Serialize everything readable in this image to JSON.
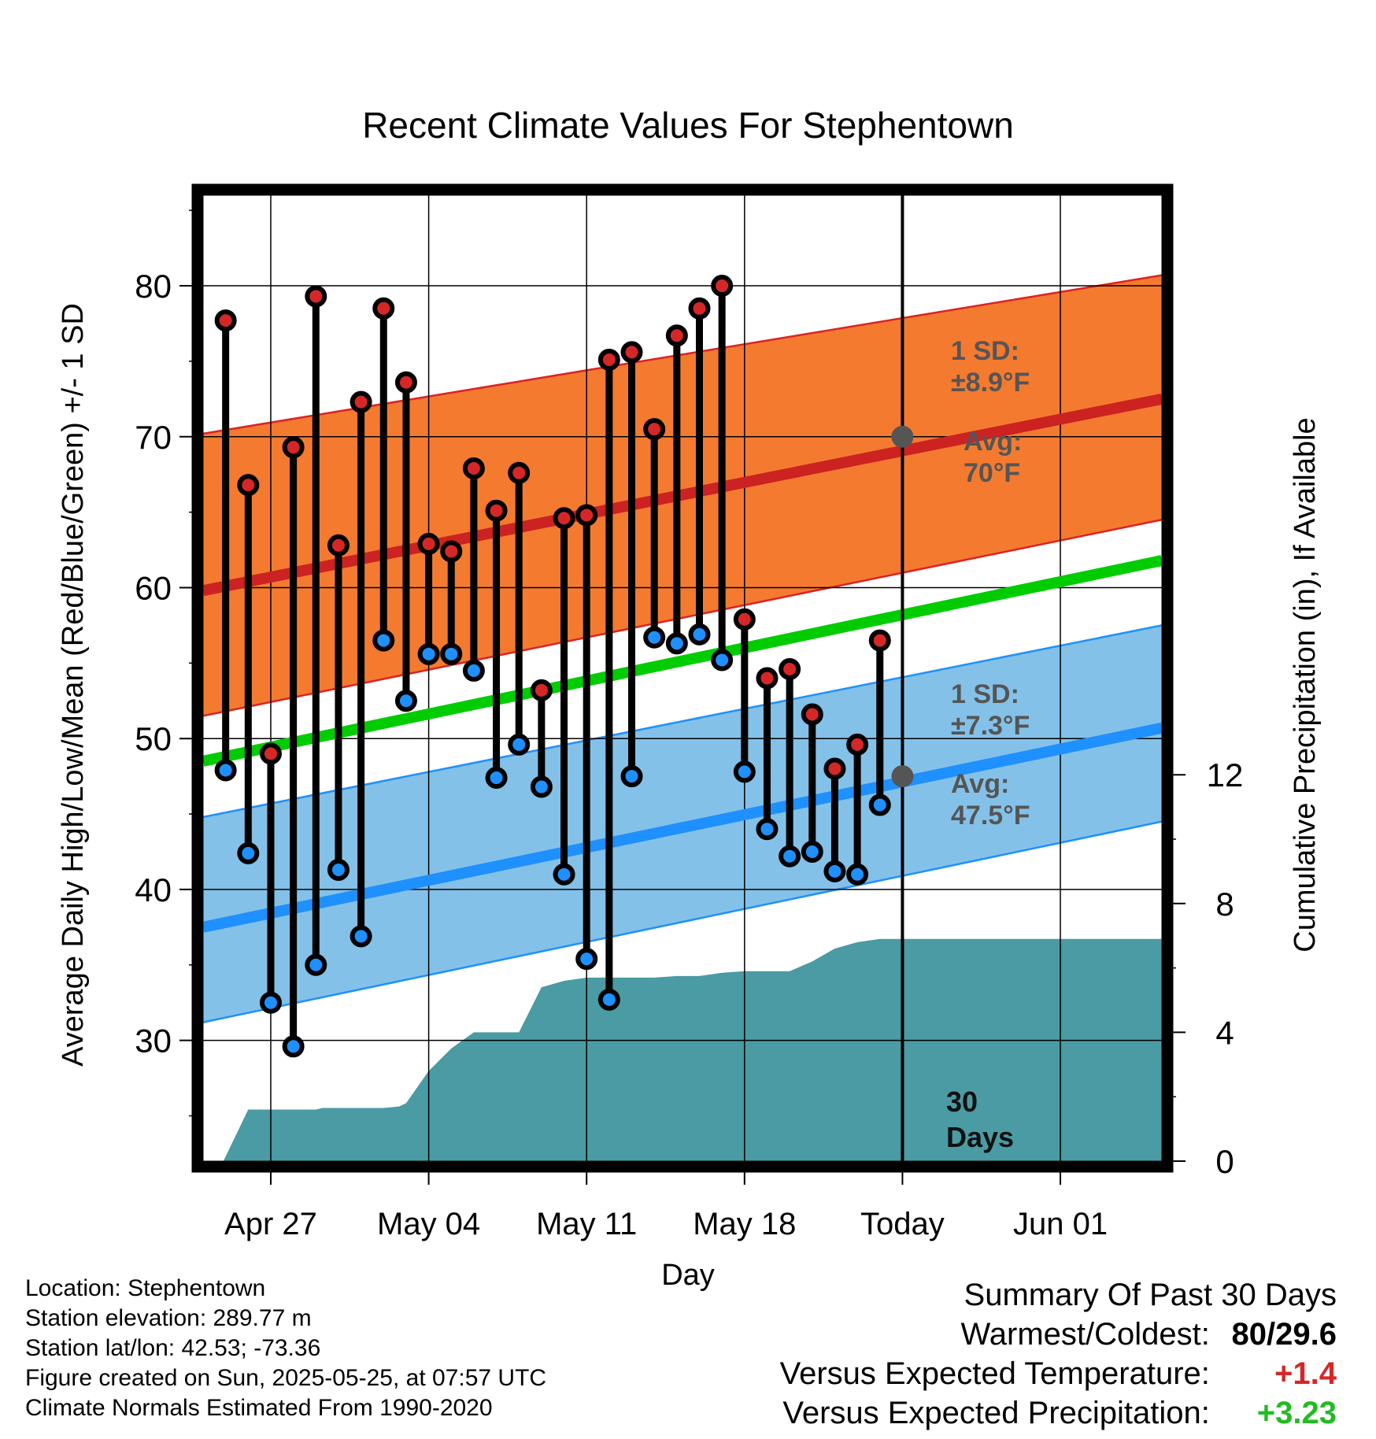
{
  "chart_data": {
    "type": "line",
    "title": "Recent Climate Values For Stephentown",
    "xlabel": "Day",
    "ylabel_left": "Average Daily High/Low/Mean (Red/Blue/Green) +/- 1 SD",
    "ylabel_right": "Cumulative Precipitation (in), If Available",
    "x_range_days_from_apr27": [
      -3,
      39.5
    ],
    "y_left_range": [
      22,
      86
    ],
    "y_right_range": [
      0,
      30
    ],
    "x_ticks": [
      {
        "day": 0,
        "label": "Apr 27"
      },
      {
        "day": 7,
        "label": "May 04"
      },
      {
        "day": 14,
        "label": "May 11"
      },
      {
        "day": 21,
        "label": "May 18"
      },
      {
        "day": 28,
        "label": "Today"
      },
      {
        "day": 35,
        "label": "Jun 01"
      }
    ],
    "y_left_ticks": [
      30,
      40,
      50,
      60,
      70,
      80
    ],
    "y_right_ticks": [
      0,
      4,
      8,
      12
    ],
    "grid": true,
    "days": [
      -2,
      -1,
      0,
      1,
      2,
      3,
      4,
      5,
      6,
      7,
      8,
      9,
      10,
      11,
      12,
      13,
      14,
      15,
      16,
      17,
      18,
      19,
      20,
      21,
      22,
      23,
      24,
      25,
      26,
      27
    ],
    "series": [
      {
        "name": "High",
        "color": "#d62728",
        "values": [
          77.7,
          66.8,
          49.0,
          69.3,
          79.3,
          62.8,
          72.3,
          78.5,
          73.6,
          62.9,
          62.4,
          67.9,
          65.1,
          67.6,
          53.2,
          64.6,
          64.8,
          75.1,
          75.6,
          70.5,
          76.7,
          78.5,
          80.0,
          57.9,
          54.0,
          54.6,
          51.6,
          48.0,
          49.6,
          56.5
        ]
      },
      {
        "name": "Low",
        "color": "#1e90ff",
        "values": [
          47.9,
          42.4,
          32.5,
          29.6,
          35.0,
          41.3,
          36.9,
          56.5,
          52.5,
          55.6,
          55.6,
          54.5,
          47.4,
          49.6,
          46.8,
          41.0,
          35.4,
          32.7,
          47.5,
          56.7,
          56.3,
          56.9,
          55.2,
          47.8,
          44.0,
          42.2,
          42.5,
          41.2,
          41.0,
          45.6
        ]
      }
    ],
    "normals": {
      "high_avg": {
        "start": 59.8,
        "end": 72.5,
        "color": "#cc2222"
      },
      "high_sd_band": {
        "lower_start": 51.5,
        "lower_end": 64.5,
        "upper_start": 70.2,
        "upper_end": 80.7,
        "color": "#f47a30"
      },
      "mean_avg": {
        "start": 48.5,
        "end": 61.8,
        "color": "#00cc00"
      },
      "low_avg": {
        "start": 37.5,
        "end": 50.7,
        "color": "#1e90ff"
      },
      "low_sd_band": {
        "lower_start": 31.2,
        "lower_end": 44.5,
        "upper_start": 44.8,
        "upper_end": 57.5,
        "color": "#84c1e8"
      }
    },
    "precip_cumulative": {
      "color": "#4a9ba3",
      "points": [
        [
          -2.1,
          0.0
        ],
        [
          -1,
          1.6
        ],
        [
          2,
          1.6
        ],
        [
          2.3,
          1.65
        ],
        [
          5,
          1.65
        ],
        [
          5.7,
          1.7
        ],
        [
          6,
          1.8
        ],
        [
          7,
          2.8
        ],
        [
          8,
          3.5
        ],
        [
          9,
          4.0
        ],
        [
          10,
          4.0
        ],
        [
          11,
          4.0
        ],
        [
          12,
          5.4
        ],
        [
          13,
          5.6
        ],
        [
          14,
          5.7
        ],
        [
          15,
          5.7
        ],
        [
          16,
          5.7
        ],
        [
          17,
          5.7
        ],
        [
          18,
          5.75
        ],
        [
          19,
          5.75
        ],
        [
          20,
          5.85
        ],
        [
          21,
          5.9
        ],
        [
          22,
          5.9
        ],
        [
          23,
          5.9
        ],
        [
          24,
          6.2
        ],
        [
          25,
          6.6
        ],
        [
          26,
          6.8
        ],
        [
          27,
          6.9
        ],
        [
          28,
          6.9
        ],
        [
          39.5,
          6.9
        ]
      ]
    },
    "annotations": {
      "high_sd_label": "1 SD:",
      "high_sd_value": "±8.9°F",
      "high_avg_label": "Avg:",
      "high_avg_value": "70°F",
      "low_sd_label": "1 SD:",
      "low_sd_value": "±7.3°F",
      "low_avg_label": "Avg:",
      "low_avg_value": "47.5°F",
      "days_line1": "30",
      "days_line2": "Days",
      "today_high_avg": 70,
      "today_low_avg": 47.5
    }
  },
  "info": {
    "location": "Location: Stephentown",
    "elevation": "Station elevation: 289.77 m",
    "latlon": "Station lat/lon: 42.53; -73.36",
    "created": "Figure created on Sun, 2025-05-25, at 07:57 UTC",
    "normals": "Climate Normals Estimated From 1990-2020"
  },
  "summary": {
    "title": "Summary Of Past 30 Days",
    "warm_cold_label": "Warmest/Coldest:",
    "warm_cold_value": "80/29.6",
    "temp_label": "Versus Expected Temperature:",
    "temp_value": "+1.4",
    "temp_color": "#d62728",
    "precip_label": "Versus Expected Precipitation:",
    "precip_value": "+3.23",
    "precip_color": "#22bb22"
  }
}
